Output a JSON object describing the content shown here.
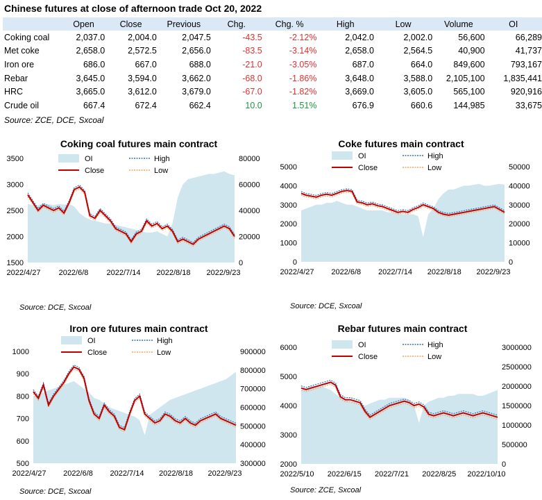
{
  "title": "Chinese futures at close of afternoon trade Oct 20, 2022",
  "table": {
    "headers": [
      "",
      "Open",
      "Close",
      "Previous",
      "Chg.",
      "Chg. %",
      "High",
      "Low",
      "Volume",
      "OI"
    ],
    "rows": [
      {
        "name": "Coking coal",
        "open": "2,037.0",
        "close": "2,004.0",
        "prev": "2,047.5",
        "chg": "-43.5",
        "pct": "-2.12%",
        "high": "2,042.0",
        "low": "2,002.0",
        "vol": "56,600",
        "oi": "66,289"
      },
      {
        "name": "Met coke",
        "open": "2,658.0",
        "close": "2,572.5",
        "prev": "2,656.0",
        "chg": "-83.5",
        "pct": "-3.14%",
        "high": "2,658.0",
        "low": "2,564.5",
        "vol": "40,900",
        "oi": "41,737"
      },
      {
        "name": "Iron ore",
        "open": "686.0",
        "close": "667.0",
        "prev": "688.0",
        "chg": "-21.0",
        "pct": "-3.05%",
        "high": "687.0",
        "low": "664.0",
        "vol": "849,600",
        "oi": "793,167"
      },
      {
        "name": "Rebar",
        "open": "3,645.0",
        "close": "3,594.0",
        "prev": "3,662.0",
        "chg": "-68.0",
        "pct": "-1.86%",
        "high": "3,648.0",
        "low": "3,588.0",
        "vol": "2,105,100",
        "oi": "1,835,441"
      },
      {
        "name": "HRC",
        "open": "3,665.0",
        "close": "3,612.0",
        "prev": "3,679.0",
        "chg": "-67.0",
        "pct": "-1.82%",
        "high": "3,669.0",
        "low": "3,605.0",
        "vol": "565,100",
        "oi": "920,916"
      },
      {
        "name": "Crude oil",
        "open": "667.4",
        "close": "672.4",
        "prev": "662.4",
        "chg": "10.0",
        "pct": "1.51%",
        "high": "676.9",
        "low": "660.6",
        "vol": "144,985",
        "oi": "33,675"
      }
    ],
    "source": "Source: ZCE, DCE, Sxcoal"
  },
  "colors": {
    "oi": "#cfe6ee",
    "close": "#c00000",
    "high": "#2e75b6",
    "low": "#f4a460",
    "neg": "#e03030",
    "pos": "#1a9a3a",
    "header_bg": "#dbe9f7"
  },
  "chart_data": [
    {
      "type": "line",
      "title": "Coking coal futures main contract",
      "legend": [
        "OI",
        "High",
        "Close",
        "Low"
      ],
      "ylim": [
        1500,
        3500
      ],
      "yticks": [
        "1500",
        "2000",
        "2500",
        "3000",
        "3500"
      ],
      "y2lim": [
        0,
        80000
      ],
      "y2ticks": [
        "0",
        "20000",
        "40000",
        "60000",
        "80000"
      ],
      "xticks": [
        "2022/4/27",
        "2022/6/8",
        "2022/7/14",
        "2022/8/18",
        "2022/9/23"
      ],
      "oi": [
        45000,
        44000,
        44000,
        45000,
        45000,
        44000,
        45000,
        44500,
        45000,
        43000,
        38000,
        35000,
        33000,
        32000,
        31000,
        30000,
        30000,
        29000,
        28000,
        27000,
        26000,
        25000,
        24000,
        23000,
        23000,
        24000,
        22000,
        20000,
        30000,
        50000,
        60000,
        64000,
        65000,
        66000,
        67000,
        68000,
        68000,
        69000,
        70000,
        68000,
        67000
      ],
      "close": [
        2800,
        2650,
        2500,
        2600,
        2550,
        2500,
        2550,
        2450,
        2650,
        2900,
        2950,
        2850,
        2400,
        2350,
        2500,
        2400,
        2300,
        2150,
        2100,
        2050,
        1900,
        2050,
        2100,
        2300,
        2200,
        2250,
        2150,
        2200,
        2100,
        1900,
        1950,
        1900,
        1850,
        1950,
        2000,
        2050,
        2100,
        2150,
        2200,
        2150,
        2000
      ],
      "source": "Source: DCE, Sxcoal"
    },
    {
      "type": "line",
      "title": "Coke futures main contract",
      "legend": [
        "OI",
        "High",
        "Close",
        "Low"
      ],
      "ylim": [
        0,
        5000
      ],
      "yticks": [
        "0",
        "1000",
        "2000",
        "3000",
        "4000",
        "5000"
      ],
      "y2lim": [
        0,
        50000
      ],
      "y2ticks": [
        "0",
        "10000",
        "20000",
        "30000",
        "40000",
        "50000"
      ],
      "xticks": [
        "2022/4/27",
        "2022/6/8",
        "2022/7/14",
        "2022/8/18",
        "2022/9/23"
      ],
      "oi": [
        27000,
        28000,
        29000,
        30000,
        30000,
        31000,
        31000,
        32000,
        31000,
        30000,
        30000,
        29000,
        28000,
        27000,
        27000,
        27000,
        27000,
        26000,
        26000,
        26000,
        25000,
        25000,
        25000,
        24000,
        13000,
        25000,
        28000,
        33000,
        36000,
        38000,
        38000,
        39000,
        40000,
        40000,
        40500,
        41000,
        40000,
        40000,
        40500,
        41000,
        40500
      ],
      "close": [
        3600,
        3500,
        3450,
        3400,
        3500,
        3550,
        3500,
        3600,
        3700,
        3750,
        3700,
        3150,
        3100,
        3000,
        3050,
        2950,
        2900,
        2800,
        2700,
        2600,
        2650,
        2600,
        2750,
        2850,
        3000,
        2900,
        2800,
        2600,
        2500,
        2450,
        2500,
        2550,
        2600,
        2650,
        2700,
        2750,
        2800,
        2850,
        2900,
        2750,
        2600
      ],
      "source": "Source: DCE, Sxcoal"
    },
    {
      "type": "line",
      "title": "Iron ore futures main contract",
      "legend": [
        "OI",
        "High",
        "Close",
        "Low"
      ],
      "ylim": [
        500,
        1000
      ],
      "yticks": [
        "500",
        "600",
        "700",
        "800",
        "900",
        "1000"
      ],
      "y2lim": [
        300000,
        900000
      ],
      "y2ticks": [
        "300000",
        "400000",
        "500000",
        "600000",
        "700000",
        "800000",
        "900000"
      ],
      "xticks": [
        "2022/4/27",
        "2022/6/8",
        "2022/7/14",
        "2022/8/18",
        "2022/9/23"
      ],
      "oi": [
        660000,
        670000,
        680000,
        690000,
        700000,
        710000,
        720000,
        730000,
        740000,
        720000,
        700000,
        680000,
        650000,
        640000,
        620000,
        600000,
        590000,
        580000,
        570000,
        560000,
        550000,
        530000,
        450000,
        560000,
        580000,
        600000,
        620000,
        640000,
        650000,
        660000,
        670000,
        680000,
        690000,
        700000,
        710000,
        720000,
        730000,
        740000,
        750000,
        770000,
        790000
      ],
      "close": [
        820,
        790,
        850,
        760,
        800,
        830,
        860,
        900,
        930,
        920,
        880,
        780,
        720,
        700,
        760,
        730,
        710,
        660,
        650,
        720,
        780,
        800,
        720,
        700,
        680,
        690,
        720,
        710,
        690,
        680,
        700,
        680,
        670,
        690,
        700,
        710,
        720,
        700,
        690,
        680,
        670
      ],
      "source": "Source: DCE, Sxcoal"
    },
    {
      "type": "line",
      "title": "Rebar futures main contract",
      "legend": [
        "OI",
        "High",
        "Close",
        "Low"
      ],
      "ylim": [
        2000,
        6000
      ],
      "yticks": [
        "2000",
        "3000",
        "4000",
        "5000",
        "6000"
      ],
      "y2lim": [
        0,
        3000000
      ],
      "y2ticks": [
        "0",
        "500000",
        "1000000",
        "1500000",
        "2000000",
        "2500000",
        "3000000"
      ],
      "xticks": [
        "2022/5/10",
        "2022/6/15",
        "2022/7/21",
        "2022/8/25",
        "2022/10/10"
      ],
      "oi": [
        1900000,
        1950000,
        2000000,
        2000000,
        2000000,
        1950000,
        1900000,
        1800000,
        1700000,
        1650000,
        1600000,
        1600000,
        1550000,
        1500000,
        1550000,
        1600000,
        1650000,
        1650000,
        1700000,
        1700000,
        1700000,
        1700000,
        1650000,
        1500000,
        1050000,
        1500000,
        1600000,
        1650000,
        1700000,
        1700000,
        1750000,
        1750000,
        1800000,
        1800000,
        1800000,
        1800000,
        1750000,
        1750000,
        1800000,
        1850000,
        1900000
      ],
      "close": [
        4600,
        4550,
        4600,
        4650,
        4700,
        4750,
        4800,
        4700,
        4300,
        4200,
        4200,
        4150,
        4100,
        3800,
        3600,
        3700,
        3800,
        3900,
        4000,
        4050,
        4100,
        4150,
        4100,
        4000,
        4050,
        3950,
        3700,
        3650,
        3700,
        3750,
        3700,
        3650,
        3700,
        3750,
        3700,
        3650,
        3700,
        3750,
        3700,
        3650,
        3600
      ],
      "source": "Source: ZCE, Sxcoal"
    }
  ]
}
